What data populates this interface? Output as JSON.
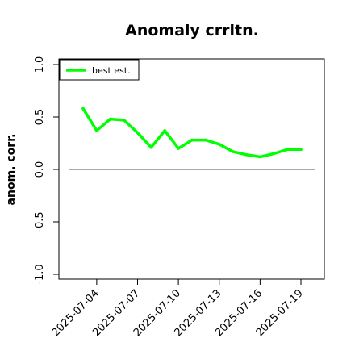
{
  "chart_data": {
    "type": "line",
    "title": "Anomaly crrltn.",
    "xlabel": "",
    "ylabel": "anom. corr.",
    "x": [
      "2025-07-03",
      "2025-07-04",
      "2025-07-05",
      "2025-07-06",
      "2025-07-07",
      "2025-07-08",
      "2025-07-09",
      "2025-07-10",
      "2025-07-11",
      "2025-07-12",
      "2025-07-13",
      "2025-07-14",
      "2025-07-15",
      "2025-07-16",
      "2025-07-17",
      "2025-07-18",
      "2025-07-19"
    ],
    "series": [
      {
        "name": "best est.",
        "color": "#00ff00",
        "values": [
          0.58,
          0.37,
          0.48,
          0.47,
          0.35,
          0.21,
          0.37,
          0.2,
          0.28,
          0.28,
          0.24,
          0.17,
          0.14,
          0.12,
          0.15,
          0.19,
          0.19
        ]
      }
    ],
    "ylim": [
      -1.0,
      1.0
    ],
    "yticks": [
      "-1.0",
      "-0.5",
      "0.0",
      "0.5",
      "1.0"
    ],
    "xticks": [
      "2025-07-04",
      "2025-07-07",
      "2025-07-10",
      "2025-07-13",
      "2025-07-16",
      "2025-07-19"
    ],
    "reference_line": 0,
    "legend_position": "top-left",
    "grid": false
  }
}
